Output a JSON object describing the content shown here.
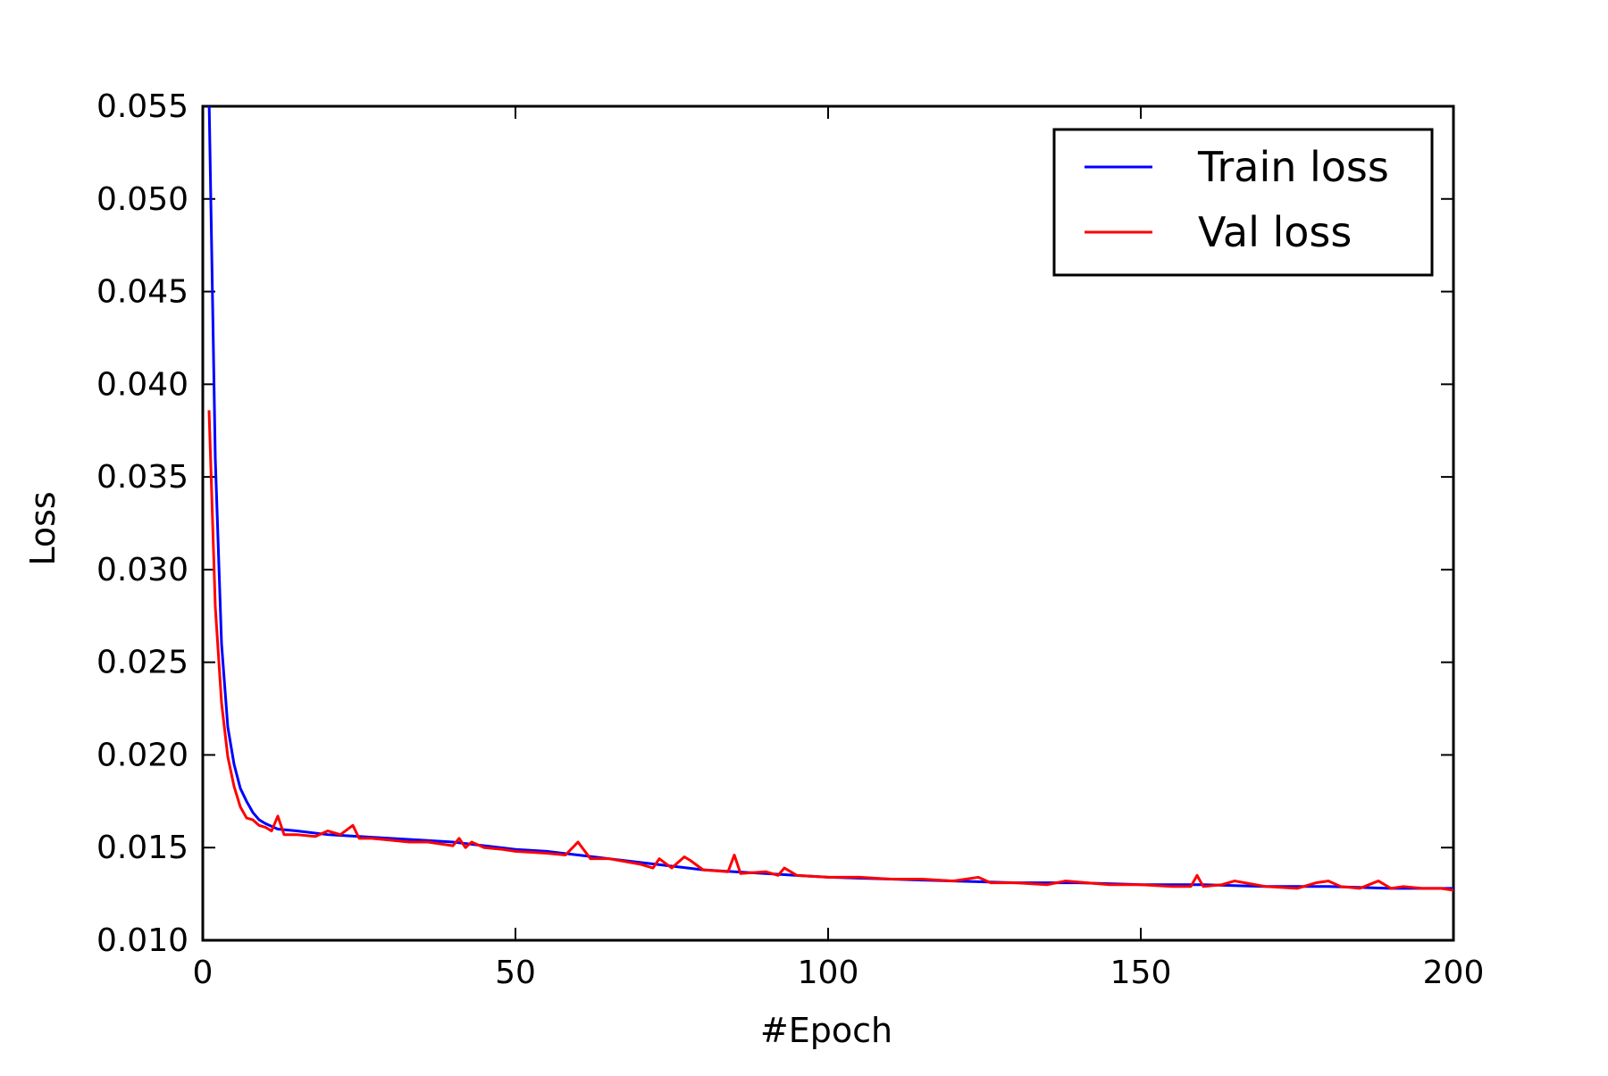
{
  "chart_data": {
    "type": "line",
    "title": "",
    "xlabel": "#Epoch",
    "ylabel": "Loss",
    "xlim": [
      0,
      200
    ],
    "ylim": [
      0.01,
      0.055
    ],
    "xticks": [
      "0",
      "50",
      "100",
      "150",
      "200"
    ],
    "yticks": [
      "0.010",
      "0.015",
      "0.020",
      "0.025",
      "0.030",
      "0.035",
      "0.040",
      "0.045",
      "0.050",
      "0.055"
    ],
    "grid": false,
    "legend_position": "top-right",
    "series": [
      {
        "name": "Train loss",
        "color": "#0000ff",
        "x": [
          1,
          2,
          3,
          4,
          5,
          6,
          7,
          8,
          9,
          10,
          12,
          15,
          20,
          25,
          30,
          35,
          40,
          45,
          50,
          55,
          60,
          65,
          70,
          75,
          80,
          85,
          90,
          95,
          100,
          110,
          120,
          130,
          140,
          150,
          160,
          170,
          180,
          190,
          200
        ],
        "y": [
          0.0555,
          0.036,
          0.026,
          0.0215,
          0.0195,
          0.0182,
          0.0175,
          0.0169,
          0.0165,
          0.0163,
          0.016,
          0.0159,
          0.0157,
          0.0156,
          0.0155,
          0.0154,
          0.0153,
          0.0151,
          0.0149,
          0.0148,
          0.0146,
          0.0144,
          0.0142,
          0.014,
          0.0138,
          0.0137,
          0.0136,
          0.0135,
          0.0134,
          0.0133,
          0.0132,
          0.0131,
          0.0131,
          0.013,
          0.013,
          0.0129,
          0.0129,
          0.0128,
          0.0128
        ]
      },
      {
        "name": "Val loss",
        "color": "#ff0000",
        "x": [
          1,
          2,
          3,
          4,
          5,
          6,
          7,
          8,
          9,
          10,
          11,
          12,
          13,
          15,
          18,
          20,
          22,
          24,
          25,
          27,
          30,
          33,
          36,
          40,
          41,
          42,
          43,
          45,
          48,
          50,
          55,
          58,
          60,
          62,
          65,
          70,
          72,
          73,
          75,
          77,
          78,
          80,
          84,
          85,
          86,
          90,
          92,
          93,
          95,
          100,
          105,
          110,
          115,
          120,
          124,
          126,
          130,
          135,
          138,
          145,
          150,
          155,
          158,
          159,
          160,
          163,
          165,
          170,
          175,
          178,
          180,
          182,
          185,
          188,
          190,
          192,
          195,
          198,
          200
        ],
        "y": [
          0.0386,
          0.028,
          0.0228,
          0.0199,
          0.0183,
          0.0172,
          0.0166,
          0.0165,
          0.0162,
          0.0161,
          0.0159,
          0.0167,
          0.0157,
          0.0157,
          0.0156,
          0.0159,
          0.0157,
          0.0162,
          0.0155,
          0.0155,
          0.0154,
          0.0153,
          0.0153,
          0.0151,
          0.0155,
          0.015,
          0.0153,
          0.015,
          0.0149,
          0.0148,
          0.0147,
          0.0146,
          0.0153,
          0.0144,
          0.0144,
          0.0141,
          0.0139,
          0.0144,
          0.0139,
          0.0145,
          0.0143,
          0.0138,
          0.0137,
          0.0146,
          0.0136,
          0.0137,
          0.0135,
          0.0139,
          0.0135,
          0.0134,
          0.0134,
          0.0133,
          0.0133,
          0.0132,
          0.0134,
          0.0131,
          0.0131,
          0.013,
          0.0132,
          0.013,
          0.013,
          0.0129,
          0.0129,
          0.0135,
          0.0129,
          0.013,
          0.0132,
          0.0129,
          0.0128,
          0.0131,
          0.0132,
          0.0129,
          0.0128,
          0.0132,
          0.0128,
          0.0129,
          0.0128,
          0.0128,
          0.0127
        ]
      }
    ]
  }
}
